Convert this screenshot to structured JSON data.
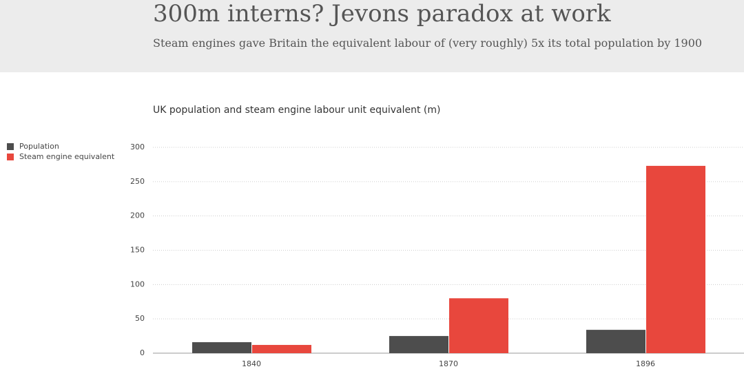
{
  "header": {
    "title": "300m interns? Jevons paradox at work",
    "subtitle": "Steam engines gave Britain the equivalent labour of (very roughly) 5x its total population by 1900"
  },
  "chart_data": {
    "type": "bar",
    "title": "UK population and steam engine labour unit equivalent (m)",
    "categories": [
      "1840",
      "1870",
      "1896"
    ],
    "series": [
      {
        "name": "Population",
        "color": "#4d4d4d",
        "values": [
          16,
          25,
          34
        ]
      },
      {
        "name": "Steam engine equivalent",
        "color": "#e8473d",
        "values": [
          12,
          80,
          273
        ]
      }
    ],
    "ylim": [
      0,
      300
    ],
    "yticks": [
      0,
      50,
      100,
      150,
      200,
      250,
      300
    ],
    "grid": true,
    "legend": "left"
  }
}
